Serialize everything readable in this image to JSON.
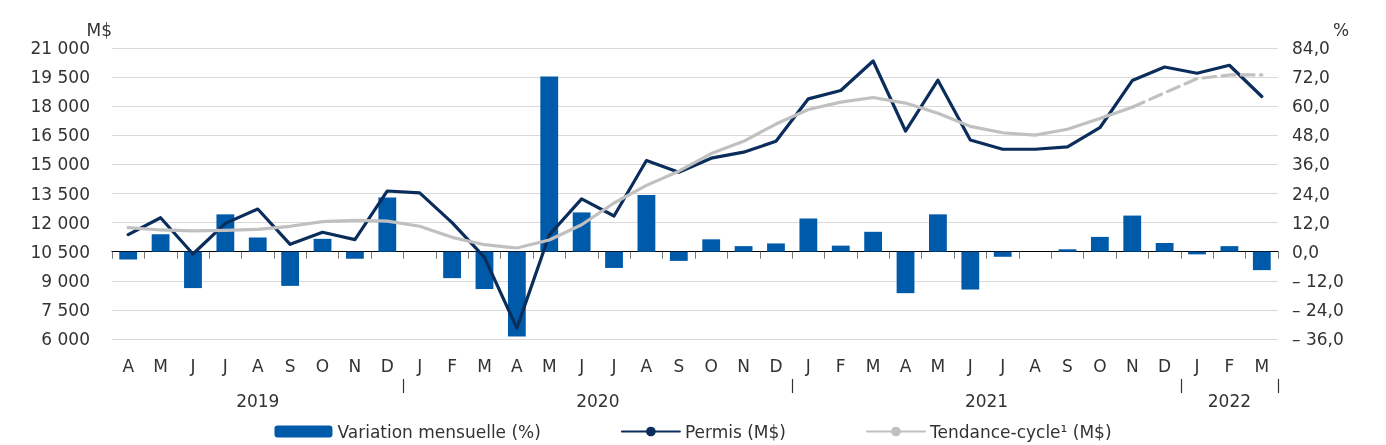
{
  "chart_data": {
    "type": "bar",
    "ylabel": "M$",
    "y2label": "%",
    "categories": [
      "A",
      "M",
      "J",
      "J",
      "A",
      "S",
      "O",
      "N",
      "D",
      "J",
      "F",
      "M",
      "A",
      "M",
      "J",
      "J",
      "A",
      "S",
      "O",
      "N",
      "D",
      "J",
      "F",
      "M",
      "A",
      "M",
      "J",
      "J",
      "A",
      "S",
      "O",
      "N",
      "D",
      "J",
      "F",
      "M"
    ],
    "series": [
      {
        "name": "Variation mensuelle (%)",
        "axis": "y2",
        "color": "#005aaa",
        "values": [
          -3.2,
          7.2,
          -15.0,
          15.4,
          5.9,
          -14.1,
          5.3,
          -2.9,
          22.3,
          0.0,
          -10.9,
          -15.4,
          -35.0,
          72.2,
          16.2,
          -6.7,
          23.4,
          -3.8,
          5.1,
          2.3,
          3.4,
          13.7,
          2.5,
          8.2,
          -17.1,
          15.4,
          -15.6,
          -2.1,
          0.0,
          1.0,
          6.1,
          14.9,
          3.6,
          -1.1,
          2.3,
          -7.6
        ]
      },
      {
        "name": "Permis (M$)",
        "type": "line",
        "color": "#0b2d5b",
        "line_style": "solid",
        "values": [
          11380,
          12250,
          10380,
          11960,
          12700,
          10880,
          11500,
          11120,
          13630,
          13530,
          12000,
          10210,
          6560,
          11360,
          13220,
          12340,
          15200,
          14600,
          15320,
          15630,
          16190,
          18380,
          18810,
          20330,
          16720,
          19340,
          16260,
          15780,
          15780,
          15900,
          16890,
          19320,
          20020,
          19700,
          20110,
          18500
        ]
      },
      {
        "name": "Tendance-cycle¹ (M$)",
        "type": "line",
        "color": "#c0c0c0",
        "line_style": "solid",
        "values": [
          11740,
          11620,
          11570,
          11600,
          11650,
          11810,
          12050,
          12120,
          12080,
          11810,
          11240,
          10860,
          10690,
          11100,
          11890,
          13010,
          13920,
          14650,
          15560,
          16190,
          17080,
          17830,
          18210,
          18450,
          18160,
          17640,
          16960,
          16630,
          16510,
          16810,
          17370,
          17950,
          null,
          null,
          null,
          null
        ]
      },
      {
        "type": "line",
        "color": "#c0c0c0",
        "line_style": "dashed",
        "values": [
          null,
          null,
          null,
          null,
          null,
          null,
          null,
          null,
          null,
          null,
          null,
          null,
          null,
          null,
          null,
          null,
          null,
          null,
          null,
          null,
          null,
          null,
          null,
          null,
          null,
          null,
          null,
          null,
          null,
          null,
          null,
          17950,
          18690,
          19420,
          19610,
          19610
        ]
      }
    ],
    "ylim": [
      6000,
      21000
    ],
    "yticks": [
      {
        "value": 6000,
        "label": "6 000"
      },
      {
        "value": 7500,
        "label": "7 500"
      },
      {
        "value": 9000,
        "label": "9 000"
      },
      {
        "value": 10500,
        "label": "10 500"
      },
      {
        "value": 12000,
        "label": "12 000"
      },
      {
        "value": 13500,
        "label": "13 500"
      },
      {
        "value": 15000,
        "label": "15 000"
      },
      {
        "value": 16500,
        "label": "16 500"
      },
      {
        "value": 18000,
        "label": "18 000"
      },
      {
        "value": 19500,
        "label": "19 500"
      },
      {
        "value": 21000,
        "label": "21 000"
      }
    ],
    "y2lim": [
      -36,
      84
    ],
    "y2ticks": [
      {
        "value": -36,
        "label": "– 36,0"
      },
      {
        "value": -24,
        "label": "– 24,0"
      },
      {
        "value": -12,
        "label": "– 12,0"
      },
      {
        "value": 0,
        "label": "0,0"
      },
      {
        "value": 12,
        "label": "12,0"
      },
      {
        "value": 24,
        "label": "24,0"
      },
      {
        "value": 36,
        "label": "36,0"
      },
      {
        "value": 48,
        "label": "48,0"
      },
      {
        "value": 60,
        "label": "60,0"
      },
      {
        "value": 72,
        "label": "72,0"
      },
      {
        "value": 84,
        "label": "84,0"
      }
    ],
    "annotations": [
      "2019",
      "2020",
      "2021",
      "2022"
    ],
    "grid": "y",
    "legend": "bottom",
    "marker": "none"
  }
}
